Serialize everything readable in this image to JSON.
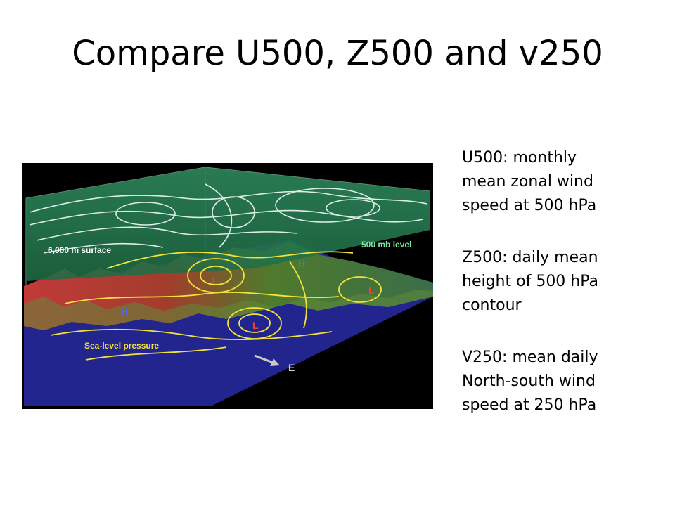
{
  "slide": {
    "title": "Compare U500, Z500 and v250"
  },
  "figure": {
    "label_6000": "6,000 m surface",
    "label_500mb": "500 mb level",
    "label_sealevel": "Sea-level pressure",
    "label_east": "E",
    "high_marker": "H",
    "low_marker": "L"
  },
  "bullets": [
    {
      "line1": "U500: monthly",
      "line2": "mean zonal wind",
      "line3": "speed at 500 hPa"
    },
    {
      "line1": "Z500: daily mean",
      "line2": "height of 500 hPa",
      "line3": "contour"
    },
    {
      "line1": "V250: mean daily",
      "line2": "North-south wind",
      "line3": "speed at 250 hPa"
    }
  ]
}
